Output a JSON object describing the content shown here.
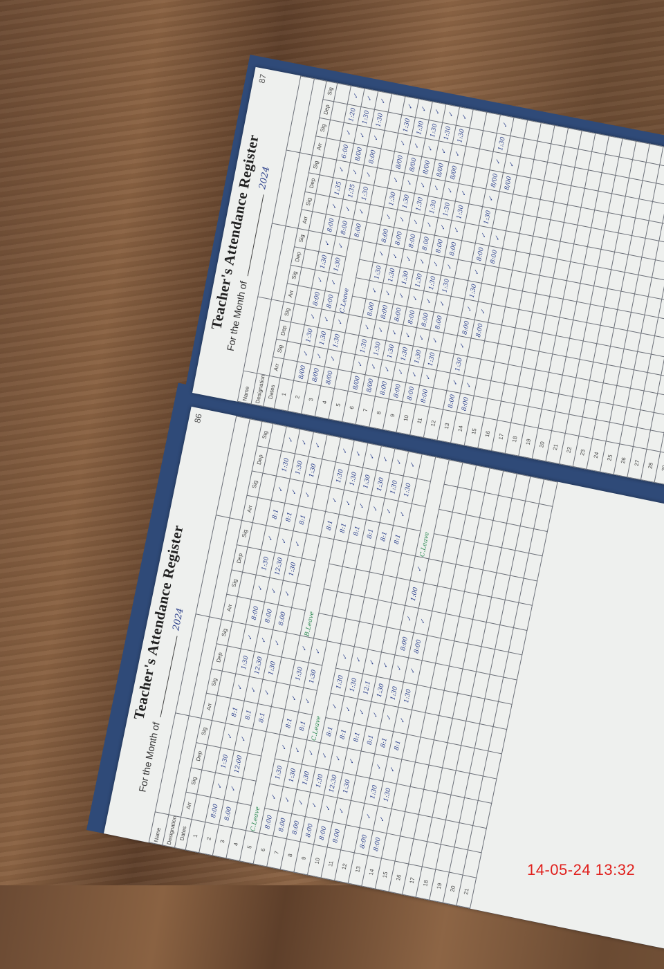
{
  "timestamp": "14-05-24  13:32",
  "pages": [
    {
      "id": "left",
      "title": "Teacher's Attendance Register",
      "month_label": "For the Month of",
      "year": "2024",
      "page_number": "86",
      "name_label": "Name",
      "designation_label": "Designation",
      "dates_label": "Dates",
      "columns": [
        "Arr",
        "Sig",
        "Dep",
        "Sig"
      ],
      "rows": [
        {
          "date": "1",
          "cells": [
            "",
            "",
            "",
            "",
            "",
            "",
            "",
            "",
            "",
            "",
            "",
            "",
            "",
            "",
            "",
            ""
          ]
        },
        {
          "date": "2",
          "cells": [
            "8:00",
            "✓",
            "1:30",
            "✓",
            "8:1",
            "✓",
            "1:30",
            "✓",
            "8:00",
            "✓",
            "1:30",
            "✓",
            "8:1",
            "✓",
            "1:30",
            "✓"
          ]
        },
        {
          "date": "3",
          "cells": [
            "8:00",
            "✓",
            "12:00",
            "✓",
            "8:1",
            "✓",
            "12:30",
            "✓",
            "8:00",
            "✓",
            "12:30",
            "✓",
            "8:1",
            "✓",
            "1:30",
            "✓"
          ]
        },
        {
          "date": "4",
          "cells": [
            "",
            "",
            "",
            "",
            "8:1",
            "✓",
            "1:30",
            "✓",
            "8:00",
            "✓",
            "1:30",
            "✓",
            "8:1",
            "✓",
            "1:30",
            "✓"
          ]
        },
        {
          "date": "5",
          "cells": [
            "C.Leave",
            "",
            "",
            "",
            "",
            "",
            "",
            "",
            "",
            "",
            "",
            "",
            "",
            "",
            "",
            ""
          ]
        },
        {
          "date": "6",
          "cells": [
            "8:00",
            "✓",
            "1:30",
            "✓",
            "8:1",
            "✓",
            "1:30",
            "✓",
            "B.Leave",
            "",
            "",
            "",
            "8:1",
            "✓",
            "1:30",
            "✓"
          ]
        },
        {
          "date": "7",
          "cells": [
            "8:00",
            "✓",
            "1:30",
            "✓",
            "8:1",
            "✓",
            "1:30",
            "✓",
            "",
            "",
            "",
            "",
            "8:1",
            "✓",
            "1:30",
            "✓"
          ]
        },
        {
          "date": "8",
          "cells": [
            "8:00",
            "✓",
            "1:30",
            "✓",
            "C.Leave",
            "",
            "",
            "",
            "",
            "",
            "",
            "",
            "8:1",
            "✓",
            "1:30",
            "✓"
          ]
        },
        {
          "date": "9",
          "cells": [
            "8:00",
            "✓",
            "1:30",
            "✓",
            "8:1",
            "✓",
            "1:30",
            "✓",
            "",
            "",
            "",
            "",
            "8:1",
            "✓",
            "1:30",
            "✓"
          ]
        },
        {
          "date": "10",
          "cells": [
            "8:00",
            "✓",
            "12:30",
            "✓",
            "8:1",
            "✓",
            "1:30",
            "✓",
            "",
            "",
            "",
            "",
            "8:1",
            "✓",
            "1:30",
            "✓"
          ]
        },
        {
          "date": "11",
          "cells": [
            "8:00",
            "✓",
            "1:30",
            "✓",
            "8:1",
            "✓",
            "12:1",
            "✓",
            "",
            "",
            "",
            "",
            "8:1",
            "✓",
            "1:30",
            "✓"
          ]
        },
        {
          "date": "12",
          "cells": [
            "",
            "",
            "",
            "",
            "8:1",
            "✓",
            "1:30",
            "✓",
            "",
            "",
            "",
            "",
            "",
            "",
            "",
            ""
          ]
        },
        {
          "date": "13",
          "cells": [
            "8:00",
            "✓",
            "1:30",
            "✓",
            "8:1",
            "✓",
            "1:30",
            "✓",
            "8:00",
            "✓",
            "1:00",
            "✓",
            "C.Leave",
            "",
            "",
            ""
          ]
        },
        {
          "date": "14",
          "cells": [
            "8:00",
            "✓",
            "1:30",
            "✓",
            "8:1",
            "✓",
            "1:30",
            "✓",
            "8:00",
            "✓",
            "",
            "",
            "",
            "",
            "",
            ""
          ]
        },
        {
          "date": "15",
          "cells": [
            "",
            "",
            "",
            "",
            "",
            "",
            "",
            "",
            "",
            "",
            "",
            "",
            "",
            "",
            "",
            ""
          ]
        },
        {
          "date": "16",
          "cells": [
            "",
            "",
            "",
            "",
            "",
            "",
            "",
            "",
            "",
            "",
            "",
            "",
            "",
            "",
            "",
            ""
          ]
        },
        {
          "date": "17",
          "cells": [
            "",
            "",
            "",
            "",
            "",
            "",
            "",
            "",
            "",
            "",
            "",
            "",
            "",
            "",
            "",
            ""
          ]
        },
        {
          "date": "18",
          "cells": [
            "",
            "",
            "",
            "",
            "",
            "",
            "",
            "",
            "",
            "",
            "",
            "",
            "",
            "",
            "",
            ""
          ]
        },
        {
          "date": "19",
          "cells": [
            "",
            "",
            "",
            "",
            "",
            "",
            "",
            "",
            "",
            "",
            "",
            "",
            "",
            "",
            "",
            ""
          ]
        },
        {
          "date": "20",
          "cells": [
            "",
            "",
            "",
            "",
            "",
            "",
            "",
            "",
            "",
            "",
            "",
            "",
            "",
            "",
            "",
            ""
          ]
        },
        {
          "date": "21",
          "cells": [
            "",
            "",
            "",
            "",
            "",
            "",
            "",
            "",
            "",
            "",
            "",
            "",
            "",
            "",
            "",
            ""
          ]
        }
      ]
    },
    {
      "id": "right",
      "title": "Teacher's Attendance Register",
      "month_label": "For the Month of",
      "year": "2024",
      "page_number": "87",
      "name_label": "Name",
      "designation_label": "Designation",
      "dates_label": "Dates",
      "columns": [
        "Arr",
        "Sig",
        "Dep",
        "Sig"
      ],
      "rows": [
        {
          "date": "1",
          "cells": [
            "",
            "",
            "",
            "",
            "",
            "",
            "",
            "",
            "",
            "",
            "",
            "",
            "",
            "",
            "",
            ""
          ]
        },
        {
          "date": "2",
          "cells": [
            "8/00",
            "✓",
            "1:30",
            "✓",
            "8:00",
            "✓",
            "1:30",
            "✓",
            "8:00",
            "✓",
            "1:35",
            "✓",
            "6:00",
            "✓",
            "1:20",
            "✓"
          ]
        },
        {
          "date": "3",
          "cells": [
            "8/00",
            "✓",
            "1:30",
            "✓",
            "8:00",
            "✓",
            "1:30",
            "✓",
            "8:00",
            "✓",
            "1:35",
            "✓",
            "8/00",
            "✓",
            "1:30",
            "✓"
          ]
        },
        {
          "date": "4",
          "cells": [
            "8/00",
            "✓",
            "1:30",
            "✓",
            "C.Leave",
            "",
            "",
            "",
            "8:00",
            "✓",
            "1:30",
            "✓",
            "8:00",
            "✓",
            "1:30",
            "✓"
          ]
        },
        {
          "date": "5",
          "cells": [
            "",
            "",
            "",
            "",
            "",
            "",
            "",
            "",
            "",
            "",
            "",
            "",
            "",
            "",
            "",
            ""
          ]
        },
        {
          "date": "6",
          "cells": [
            "8/00",
            "✓",
            "1:30",
            "✓",
            "8:00",
            "✓",
            "1:30",
            "✓",
            "8:00",
            "✓",
            "1:30",
            "✓",
            "8/00",
            "✓",
            "1:30",
            "✓"
          ]
        },
        {
          "date": "7",
          "cells": [
            "8/00",
            "✓",
            "1:30",
            "✓",
            "8:00",
            "✓",
            "1:30",
            "✓",
            "8:00",
            "✓",
            "1:30",
            "✓",
            "8/00",
            "✓",
            "1:30",
            "✓"
          ]
        },
        {
          "date": "8",
          "cells": [
            "8:00",
            "✓",
            "1:30",
            "✓",
            "8:00",
            "✓",
            "1:30",
            "✓",
            "8:00",
            "✓",
            "1:30",
            "✓",
            "8/00",
            "✓",
            "1:30",
            "✓"
          ]
        },
        {
          "date": "9",
          "cells": [
            "8:00",
            "✓",
            "1:30",
            "✓",
            "8:00",
            "✓",
            "1:30",
            "✓",
            "8:00",
            "✓",
            "1:30",
            "✓",
            "8/00",
            "✓",
            "1:30",
            "✓"
          ]
        },
        {
          "date": "10",
          "cells": [
            "8:00",
            "✓",
            "1:30",
            "✓",
            "8:00",
            "✓",
            "1:30",
            "✓",
            "8:00",
            "✓",
            "1:30",
            "✓",
            "8/00",
            "✓",
            "1:30",
            "✓"
          ]
        },
        {
          "date": "11",
          "cells": [
            "8:00",
            "✓",
            "1:30",
            "✓",
            "8:00",
            "✓",
            "1:30",
            "✓",
            "8:00",
            "✓",
            "1:30",
            "✓",
            "",
            "",
            "",
            ""
          ]
        },
        {
          "date": "12",
          "cells": [
            "",
            "",
            "",
            "",
            "",
            "",
            "",
            "",
            "",
            "",
            "",
            "",
            "",
            "",
            "",
            ""
          ]
        },
        {
          "date": "13",
          "cells": [
            "8:00",
            "✓",
            "1:30",
            "✓",
            "8:00",
            "✓",
            "1:30",
            "✓",
            "8:00",
            "✓",
            "1:30",
            "✓",
            "8/00",
            "✓",
            "1:30",
            "✓"
          ]
        },
        {
          "date": "14",
          "cells": [
            "8:00",
            "✓",
            "",
            "",
            "8:00",
            "✓",
            "",
            "",
            "8:00",
            "✓",
            "",
            "",
            "8/00",
            "✓",
            "",
            ""
          ]
        },
        {
          "date": "15",
          "cells": [
            "",
            "",
            "",
            "",
            "",
            "",
            "",
            "",
            "",
            "",
            "",
            "",
            "",
            "",
            "",
            ""
          ]
        },
        {
          "date": "16",
          "cells": [
            "",
            "",
            "",
            "",
            "",
            "",
            "",
            "",
            "",
            "",
            "",
            "",
            "",
            "",
            "",
            ""
          ]
        },
        {
          "date": "17",
          "cells": [
            "",
            "",
            "",
            "",
            "",
            "",
            "",
            "",
            "",
            "",
            "",
            "",
            "",
            "",
            "",
            ""
          ]
        },
        {
          "date": "18",
          "cells": [
            "",
            "",
            "",
            "",
            "",
            "",
            "",
            "",
            "",
            "",
            "",
            "",
            "",
            "",
            "",
            ""
          ]
        },
        {
          "date": "19",
          "cells": [
            "",
            "",
            "",
            "",
            "",
            "",
            "",
            "",
            "",
            "",
            "",
            "",
            "",
            "",
            "",
            ""
          ]
        },
        {
          "date": "20",
          "cells": [
            "",
            "",
            "",
            "",
            "",
            "",
            "",
            "",
            "",
            "",
            "",
            "",
            "",
            "",
            "",
            ""
          ]
        },
        {
          "date": "21",
          "cells": [
            "",
            "",
            "",
            "",
            "",
            "",
            "",
            "",
            "",
            "",
            "",
            "",
            "",
            "",
            "",
            ""
          ]
        },
        {
          "date": "22",
          "cells": [
            "",
            "",
            "",
            "",
            "",
            "",
            "",
            "",
            "",
            "",
            "",
            "",
            "",
            "",
            "",
            ""
          ]
        },
        {
          "date": "23",
          "cells": [
            "",
            "",
            "",
            "",
            "",
            "",
            "",
            "",
            "",
            "",
            "",
            "",
            "",
            "",
            "",
            ""
          ]
        },
        {
          "date": "24",
          "cells": [
            "",
            "",
            "",
            "",
            "",
            "",
            "",
            "",
            "",
            "",
            "",
            "",
            "",
            "",
            "",
            ""
          ]
        },
        {
          "date": "25",
          "cells": [
            "",
            "",
            "",
            "",
            "",
            "",
            "",
            "",
            "",
            "",
            "",
            "",
            "",
            "",
            "",
            ""
          ]
        },
        {
          "date": "26",
          "cells": [
            "",
            "",
            "",
            "",
            "",
            "",
            "",
            "",
            "",
            "",
            "",
            "",
            "",
            "",
            "",
            ""
          ]
        },
        {
          "date": "27",
          "cells": [
            "",
            "",
            "",
            "",
            "",
            "",
            "",
            "",
            "",
            "",
            "",
            "",
            "",
            "",
            "",
            ""
          ]
        },
        {
          "date": "28",
          "cells": [
            "",
            "",
            "",
            "",
            "",
            "",
            "",
            "",
            "",
            "",
            "",
            "",
            "",
            "",
            "",
            ""
          ]
        },
        {
          "date": "29",
          "cells": [
            "",
            "",
            "",
            "",
            "",
            "",
            "",
            "",
            "",
            "",
            "",
            "",
            "",
            "",
            "",
            ""
          ]
        }
      ]
    }
  ]
}
